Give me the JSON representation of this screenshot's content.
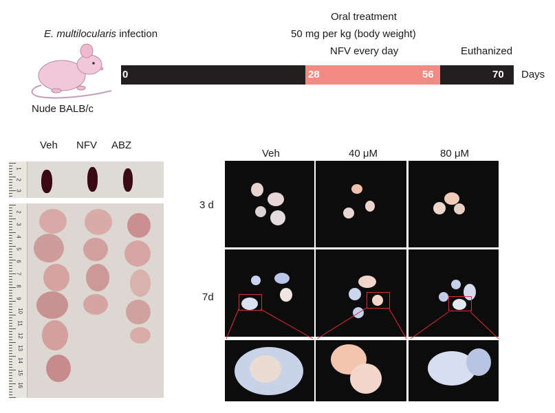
{
  "mouse": {
    "infection_species": "E. multilocularis",
    "infection_word": "infection",
    "strain_label": "Nude BALB/c"
  },
  "treatment": {
    "line1": "Oral treatment",
    "line2": "50 mg per kg (body weight)",
    "line3": "NFV every day",
    "end_label": "Euthanized"
  },
  "timeline": {
    "ticks": [
      "0",
      "28",
      "56",
      "70"
    ],
    "unit": "Days",
    "colors": {
      "base": "#231f20",
      "treatment": "#f08a82"
    }
  },
  "left_panel": {
    "labels": [
      "Veh",
      "NFV",
      "ABZ"
    ],
    "ruler_top_numbers": [
      "1",
      "2",
      "3"
    ],
    "ruler_numbers": [
      "2",
      "3",
      "4",
      "5",
      "6",
      "7",
      "8",
      "9",
      "10",
      "11",
      "12",
      "13",
      "14",
      "15",
      "16"
    ]
  },
  "right_panel": {
    "column_labels": [
      "Veh",
      "40 μM",
      "80 μM"
    ],
    "row_labels": [
      "3 d",
      "7d"
    ]
  }
}
